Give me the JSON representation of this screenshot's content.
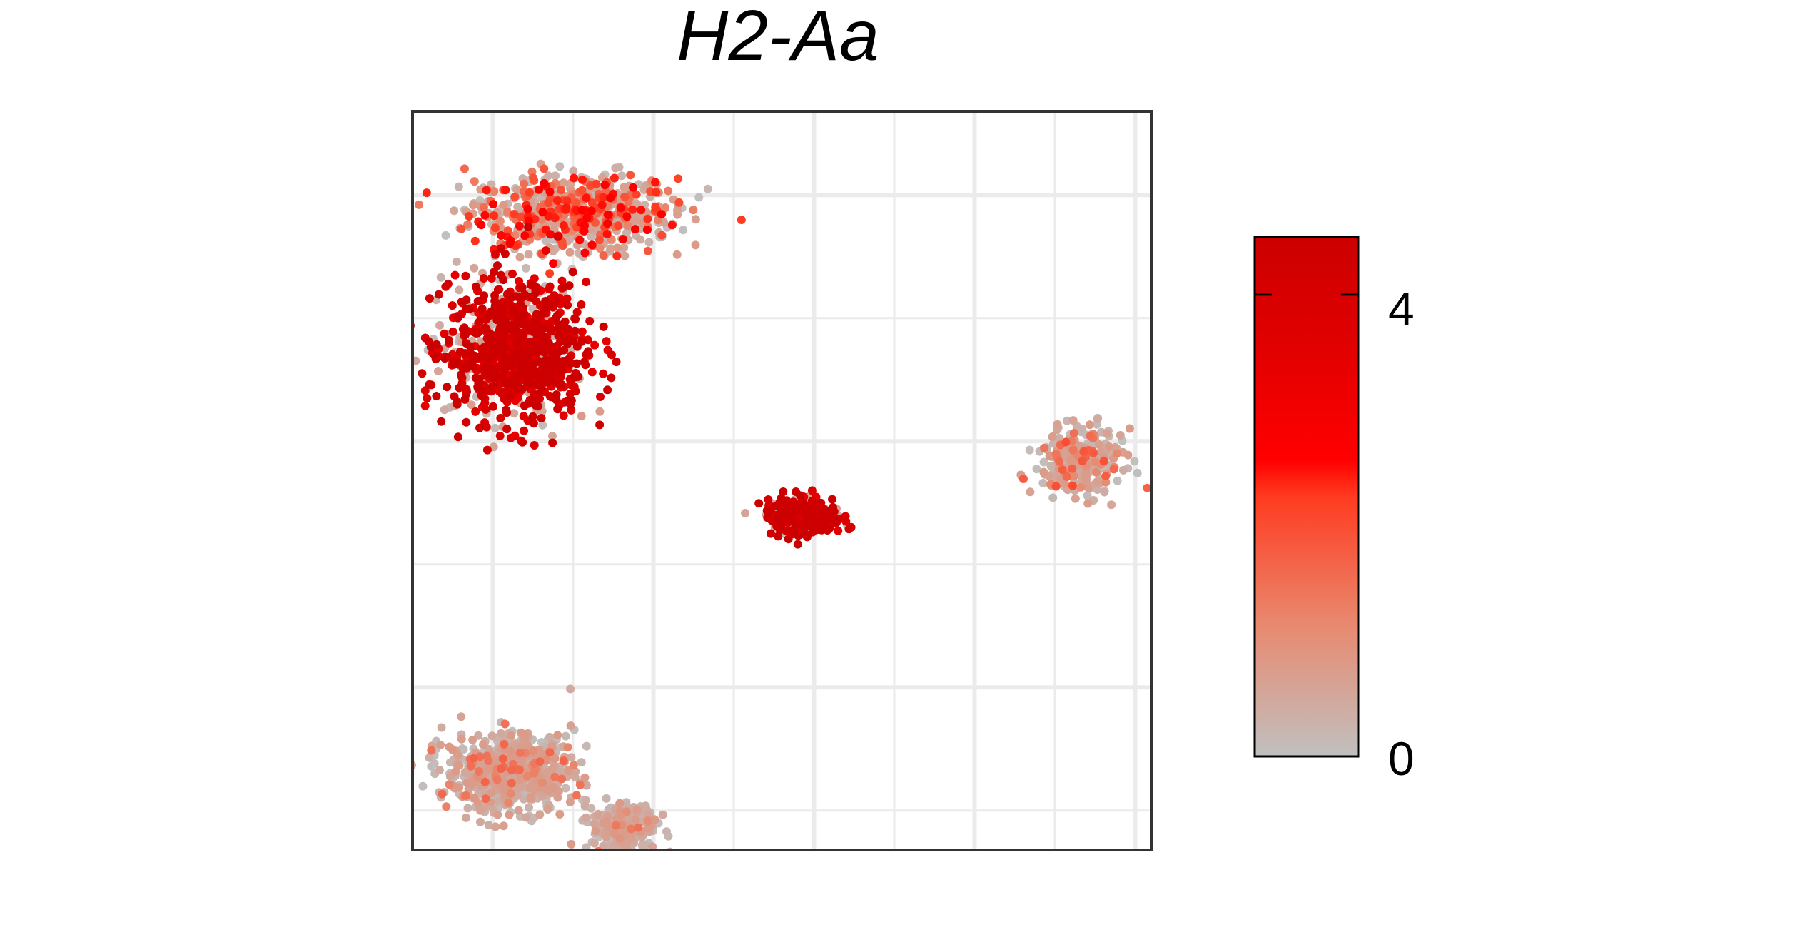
{
  "chart_data": {
    "type": "scatter",
    "title": "H2-Aa",
    "xlabel": "",
    "ylabel": "",
    "grid": true,
    "axis_ticks_shown": false,
    "colorbar": {
      "position": "right",
      "min": 0,
      "max": 4.5,
      "ticks": [
        0,
        4
      ],
      "tick_labels": [
        "0",
        "4"
      ],
      "colors": [
        "#c0c0c0",
        "#e88a70",
        "#ff3b20",
        "#ff0000",
        "#e00000",
        "#cc0000"
      ]
    },
    "clusters": [
      {
        "name": "",
        "center": [
          2.5,
          8.2
        ],
        "spread": [
          1.6,
          0.5
        ],
        "n": 700,
        "mean_value": 1.6
      },
      {
        "name": "",
        "center": [
          1.6,
          6.4
        ],
        "spread": [
          1.1,
          0.9
        ],
        "n": 900,
        "mean_value": 3.7
      },
      {
        "name": "",
        "center": [
          6.1,
          4.3
        ],
        "spread": [
          0.6,
          0.25
        ],
        "n": 220,
        "mean_value": 3.8
      },
      {
        "name": "",
        "center": [
          10.4,
          5.0
        ],
        "spread": [
          0.65,
          0.4
        ],
        "n": 300,
        "mean_value": 0.9
      },
      {
        "name": "",
        "center": [
          1.5,
          1.0
        ],
        "spread": [
          1.0,
          0.5
        ],
        "n": 650,
        "mean_value": 0.6
      },
      {
        "name": "",
        "center": [
          3.3,
          0.3
        ],
        "spread": [
          0.5,
          0.3
        ],
        "n": 250,
        "mean_value": 0.4
      }
    ],
    "xlim": [
      0,
      11.5
    ],
    "ylim": [
      0,
      9.5
    ]
  }
}
